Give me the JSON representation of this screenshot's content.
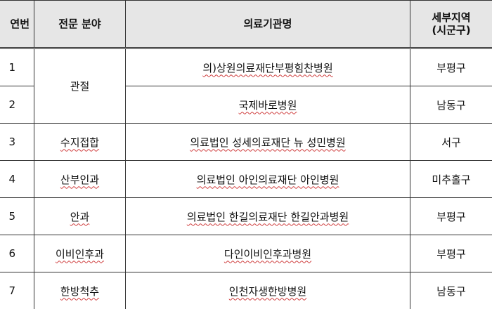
{
  "table": {
    "header": [
      "연번",
      "전문 분야",
      "의료기관명",
      "세부지역\n(시군구)"
    ],
    "groups": [
      {
        "field": "관절",
        "rows": [
          {
            "no": "1",
            "hospital": "의)상원의료재단부평힘찬병원",
            "region": "부평구"
          },
          {
            "no": "2",
            "hospital": "국제바로병원",
            "region": "남동구"
          }
        ]
      },
      {
        "field": "수지접합",
        "rows": [
          {
            "no": "3",
            "hospital": "의료법인 성세의료재단 뉴 성민병원",
            "region": "서구"
          }
        ]
      },
      {
        "field": "산부인과",
        "rows": [
          {
            "no": "4",
            "hospital": "의료법인 아인의료재단 아인병원",
            "region": "미추홀구"
          }
        ]
      },
      {
        "field": "안과",
        "rows": [
          {
            "no": "5",
            "hospital": "의료법인 한길의료재단 한길안과병원",
            "region": "부평구"
          }
        ]
      },
      {
        "field": "이비인후과",
        "rows": [
          {
            "no": "6",
            "hospital": "다인이비인후과병원",
            "region": "부평구"
          }
        ]
      },
      {
        "field": "한방척추",
        "rows": [
          {
            "no": "7",
            "hospital": "인천자생한방병원",
            "region": "남동구"
          }
        ]
      }
    ]
  }
}
